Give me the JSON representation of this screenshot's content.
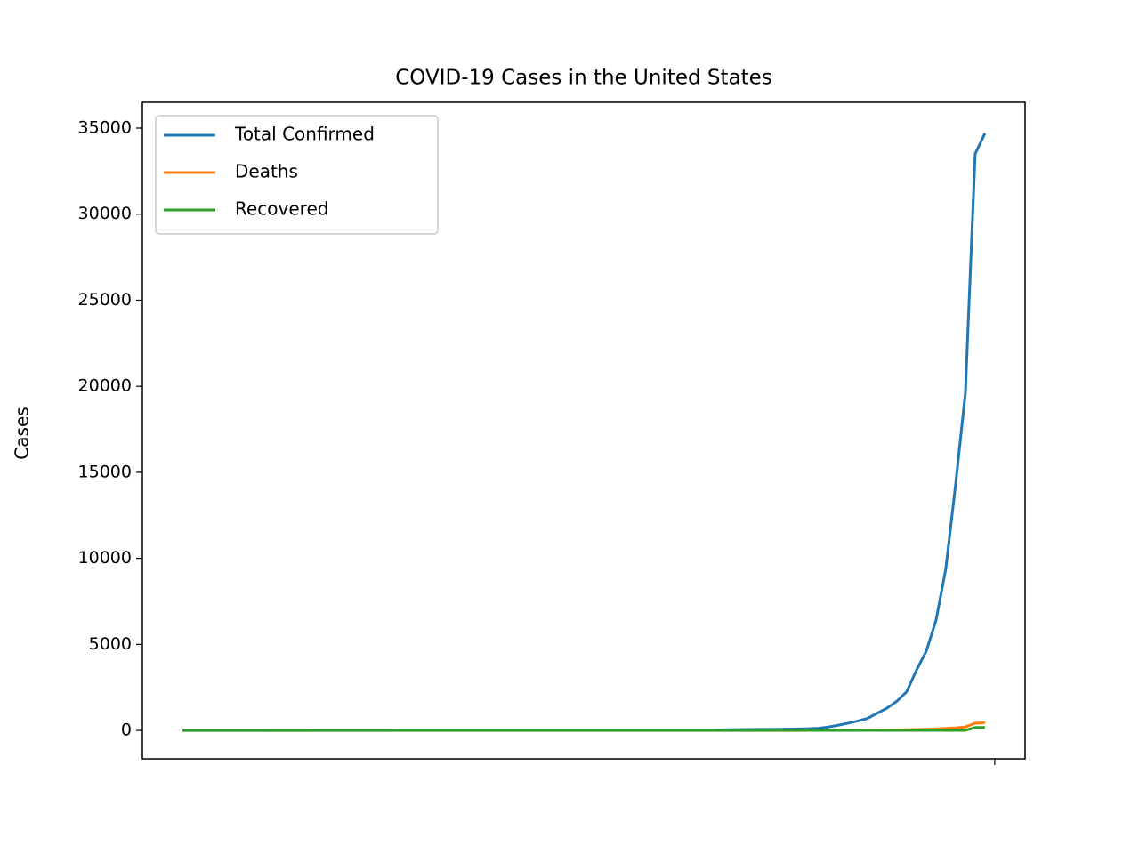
{
  "chart_data": {
    "type": "line",
    "title": "COVID-19 Cases in the United States",
    "ylabel": "Cases",
    "series": [
      {
        "name": "Total Confirmed",
        "color": "#1f77b4",
        "values": [
          1,
          1,
          2,
          2,
          5,
          5,
          5,
          6,
          6,
          8,
          8,
          8,
          11,
          11,
          11,
          12,
          12,
          12,
          12,
          12,
          13,
          13,
          14,
          14,
          14,
          14,
          14,
          14,
          14,
          14,
          15,
          15,
          15,
          15,
          15,
          15,
          15,
          15,
          15,
          15,
          15,
          15,
          15,
          15,
          15,
          15,
          15,
          15,
          15,
          15,
          16,
          16,
          16,
          16,
          20,
          30,
          40,
          50,
          55,
          60,
          65,
          70,
          75,
          90,
          100,
          130,
          200,
          300,
          420,
          550,
          700,
          1000,
          1300,
          1700,
          2250,
          3500,
          4600,
          6400,
          9400,
          14300,
          19600,
          33500,
          34700
        ]
      },
      {
        "name": "Deaths",
        "color": "#ff7f0e",
        "values": [
          0,
          0,
          0,
          0,
          0,
          0,
          0,
          0,
          0,
          0,
          0,
          0,
          0,
          0,
          0,
          0,
          0,
          0,
          0,
          0,
          0,
          0,
          0,
          0,
          0,
          0,
          0,
          0,
          0,
          0,
          0,
          0,
          0,
          0,
          0,
          0,
          0,
          0,
          0,
          0,
          0,
          0,
          0,
          0,
          0,
          0,
          0,
          0,
          0,
          0,
          0,
          0,
          0,
          0,
          0,
          0,
          0,
          0,
          0,
          0,
          0,
          0,
          0,
          0,
          1,
          2,
          5,
          8,
          10,
          12,
          15,
          20,
          25,
          30,
          40,
          50,
          70,
          90,
          120,
          150,
          200,
          420,
          450
        ]
      },
      {
        "name": "Recovered",
        "color": "#2ca02c",
        "values": [
          0,
          0,
          0,
          0,
          0,
          0,
          0,
          0,
          0,
          0,
          0,
          0,
          0,
          0,
          1,
          1,
          1,
          1,
          3,
          3,
          5,
          5,
          5,
          5,
          5,
          5,
          5,
          5,
          5,
          5,
          5,
          5,
          5,
          5,
          5,
          5,
          5,
          5,
          5,
          5,
          5,
          5,
          5,
          5,
          5,
          5,
          5,
          5,
          5,
          5,
          5,
          5,
          5,
          5,
          5,
          5,
          5,
          5,
          5,
          5,
          5,
          5,
          5,
          5,
          5,
          5,
          5,
          5,
          5,
          5,
          5,
          5,
          5,
          5,
          5,
          5,
          5,
          5,
          5,
          5,
          5,
          170,
          170
        ]
      }
    ],
    "xlim": [
      -4.1,
      86.1
    ],
    "xticks": [
      83
    ],
    "ylim": [
      -1650,
      36500
    ],
    "yticks": [
      0,
      5000,
      10000,
      15000,
      20000,
      25000,
      30000,
      35000
    ],
    "legend": "upper left",
    "grid": false
  }
}
